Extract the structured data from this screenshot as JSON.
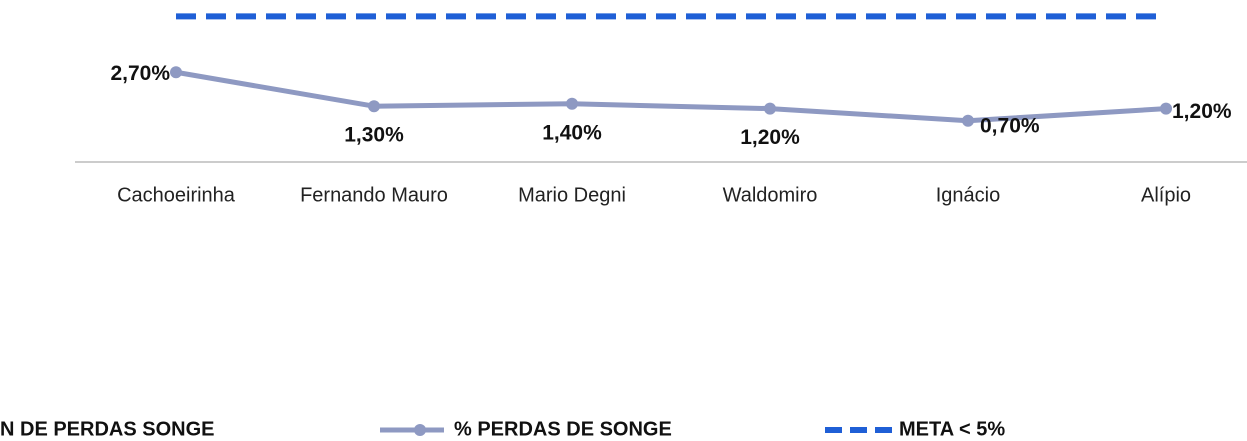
{
  "chart_data": {
    "type": "line",
    "categories": [
      "Cachoeirinha",
      "Fernando Mauro",
      "Mario Degni",
      "Waldomiro",
      "Ignácio",
      "Alípio"
    ],
    "series": [
      {
        "name": "N DE PERDAS SONGE"
      },
      {
        "name": "% PERDAS DE SONGE",
        "color": "#8e99c2",
        "values": [
          2.7,
          1.3,
          1.4,
          1.2,
          0.7,
          1.2
        ],
        "value_labels": [
          "2,70%",
          "1,30%",
          "1,40%",
          "1,20%",
          "0,70%",
          "1,20%"
        ]
      },
      {
        "name": "META < 5%",
        "color": "#1f5fd6",
        "dashed": true,
        "values": [
          5,
          5,
          5,
          5,
          5,
          5
        ]
      }
    ],
    "ylim": [
      -1,
      5.1
    ],
    "legend": "bottom"
  }
}
